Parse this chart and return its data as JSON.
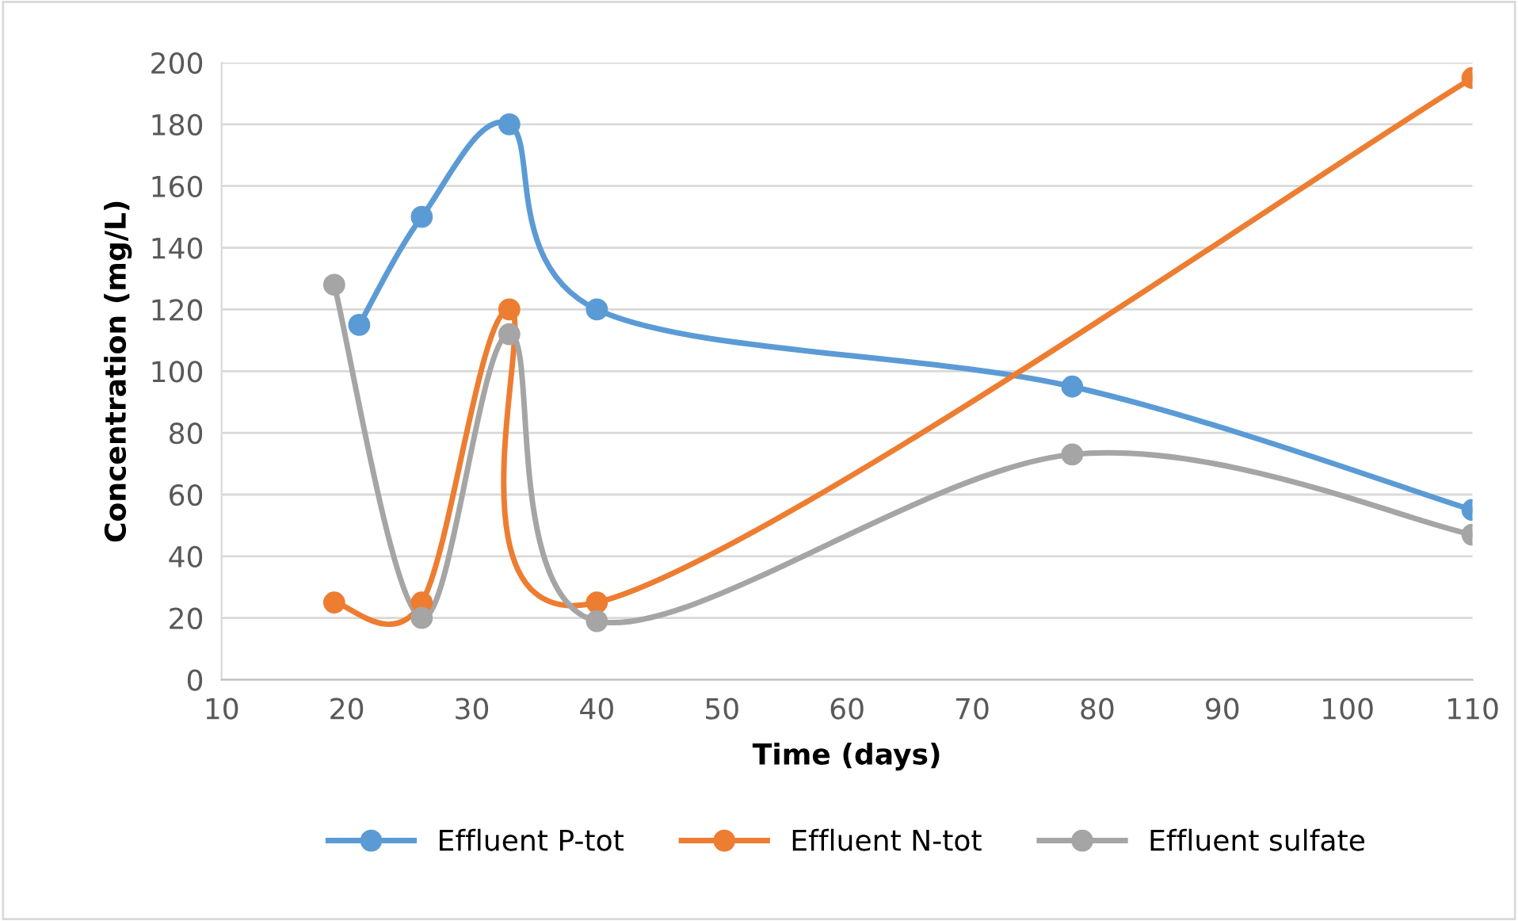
{
  "chart_data": {
    "type": "line",
    "xlabel": "Time (days)",
    "ylabel": "Concentration (mg/L)",
    "xlim": [
      10,
      110
    ],
    "xticks": [
      10,
      20,
      30,
      40,
      50,
      60,
      70,
      80,
      90,
      100,
      110
    ],
    "ylim": [
      0,
      200
    ],
    "yticks": [
      0,
      20,
      40,
      60,
      80,
      100,
      120,
      140,
      160,
      180,
      200
    ],
    "grid": "y",
    "legend": "bottom",
    "marker": "circle",
    "line_style": "solid",
    "series": [
      {
        "name": "Effluent P-tot",
        "color": "#5b9bd5",
        "x": [
          21,
          26,
          33,
          40,
          78,
          110
        ],
        "values": [
          115,
          150,
          180,
          120,
          95,
          55
        ]
      },
      {
        "name": "Effluent N-tot",
        "color": "#ed7d31",
        "x": [
          19,
          26,
          33,
          40,
          110
        ],
        "values": [
          25,
          25,
          120,
          25,
          195
        ]
      },
      {
        "name": "Effluent sulfate",
        "color": "#a5a5a5",
        "x": [
          19,
          26,
          33,
          40,
          78,
          110
        ],
        "values": [
          128,
          20,
          112,
          19,
          73,
          47
        ]
      }
    ]
  }
}
